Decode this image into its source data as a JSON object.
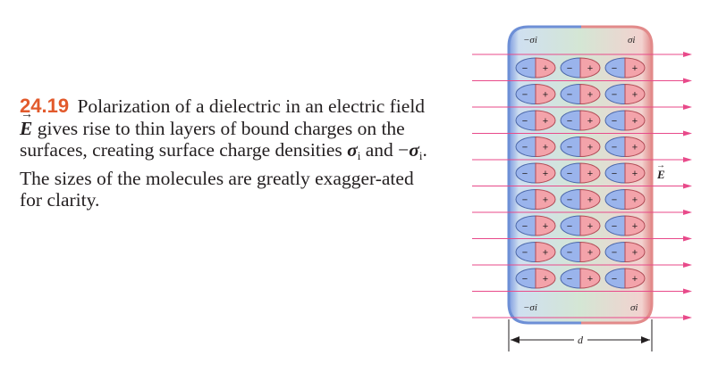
{
  "caption": {
    "figure_number": "24.19",
    "text_1": "Polarization of a dielectric in an electric field ",
    "vector": "E",
    "text_2": " gives rise to thin layers of bound charges on the surfaces, creating surface charge densities ",
    "sigma": "σ",
    "sub_i": "i",
    "text_3": " and −",
    "text_4": ". The sizes of the molecules are greatly exagger-ated for clarity."
  },
  "figure": {
    "label_top_left": "−σi",
    "label_top_right": "σi",
    "label_bottom_left": "−σi",
    "label_bottom_right": "σi",
    "label_field": "E",
    "label_d": "d",
    "plus_sign": "+",
    "minus_sign": "−"
  },
  "colors": {
    "figure_number": "#e25a2c",
    "slab_fill": "#d4e6d4",
    "negative_edge": "#6d8fd6",
    "positive_edge": "#e28a8a",
    "field_line": "#e84a8a",
    "molecule_negative": "#9ab4ec",
    "molecule_positive": "#f3a3aa"
  }
}
